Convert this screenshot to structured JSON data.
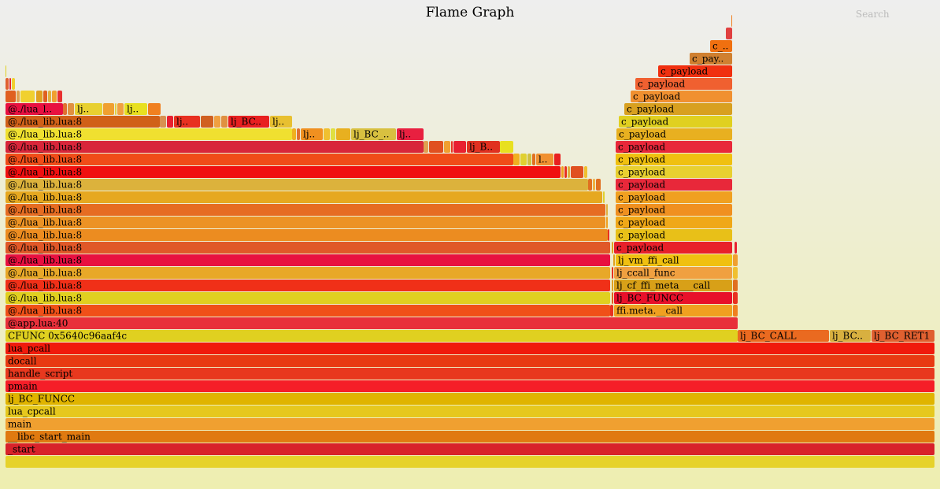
{
  "title": "Flame Graph",
  "search_label": "Search",
  "chart_data": {
    "type": "flame",
    "title": "Flame Graph",
    "row_count": 35,
    "frames": [
      {
        "d": 0,
        "x": 0,
        "w": 1180,
        "label": "",
        "color": "#e6d22a"
      },
      {
        "d": 1,
        "x": 0,
        "w": 1180,
        "label": "_start",
        "color": "#d8222a"
      },
      {
        "d": 2,
        "x": 0,
        "w": 1180,
        "label": "__libc_start_main",
        "color": "#e07a10"
      },
      {
        "d": 3,
        "x": 0,
        "w": 1180,
        "label": "main",
        "color": "#f0a030"
      },
      {
        "d": 4,
        "x": 0,
        "w": 1180,
        "label": "lua_cpcall",
        "color": "#e6c81e"
      },
      {
        "d": 5,
        "x": 0,
        "w": 1180,
        "label": "lj_BC_FUNCC",
        "color": "#e0b400"
      },
      {
        "d": 6,
        "x": 0,
        "w": 1180,
        "label": "pmain",
        "color": "#f51e28"
      },
      {
        "d": 7,
        "x": 0,
        "w": 1180,
        "label": "handle_script",
        "color": "#e8381e"
      },
      {
        "d": 8,
        "x": 0,
        "w": 1180,
        "label": "docall",
        "color": "#e83a12"
      },
      {
        "d": 9,
        "x": 0,
        "w": 1180,
        "label": "lua_pcall",
        "color": "#f01a0c"
      },
      {
        "d": 10,
        "x": 0,
        "w": 930,
        "label": "CFUNC 0x5640c96aaf4c",
        "color": "#e0d020"
      },
      {
        "d": 10,
        "x": 930,
        "w": 116,
        "label": "lj_BC_CALL",
        "color": "#ea6a20"
      },
      {
        "d": 10,
        "x": 1047,
        "w": 52,
        "label": "lj_BC..",
        "color": "#d8b040"
      },
      {
        "d": 10,
        "x": 1100,
        "w": 80,
        "label": "lj_BC_RET1",
        "color": "#e06030"
      },
      {
        "d": 11,
        "x": 0,
        "w": 930,
        "label": "@app.lua:40",
        "color": "#e8303a"
      },
      {
        "d": 12,
        "x": 0,
        "w": 768,
        "label": "@./lua_lib.lua:8",
        "color": "#f05018"
      },
      {
        "d": 12,
        "x": 768,
        "w": 4,
        "label": "",
        "color": "#e83020"
      },
      {
        "d": 12,
        "x": 773,
        "w": 150,
        "label": "ffi.meta.__call",
        "color": "#f0a020"
      },
      {
        "d": 12,
        "x": 924,
        "w": 6,
        "label": "",
        "color": "#f08020"
      },
      {
        "d": 13,
        "x": 0,
        "w": 768,
        "label": "@./lua_lib.lua:8",
        "color": "#e0d020"
      },
      {
        "d": 13,
        "x": 770,
        "w": 2,
        "label": "",
        "color": "#e06020"
      },
      {
        "d": 13,
        "x": 773,
        "w": 150,
        "label": "lj_BC_FUNCC",
        "color": "#e8102a"
      },
      {
        "d": 13,
        "x": 924,
        "w": 6,
        "label": "",
        "color": "#e83020"
      },
      {
        "d": 14,
        "x": 0,
        "w": 768,
        "label": "@./lua_lib.lua:8",
        "color": "#f03018"
      },
      {
        "d": 14,
        "x": 770,
        "w": 2,
        "label": "",
        "color": "#e0a020"
      },
      {
        "d": 14,
        "x": 773,
        "w": 150,
        "label": "lj_cf_ffi_meta___call",
        "color": "#d8a018"
      },
      {
        "d": 14,
        "x": 924,
        "w": 6,
        "label": "",
        "color": "#e07020"
      },
      {
        "d": 15,
        "x": 0,
        "w": 768,
        "label": "@./lua_lib.lua:8",
        "color": "#e8a828"
      },
      {
        "d": 15,
        "x": 770,
        "w": 2,
        "label": "",
        "color": "#e83020"
      },
      {
        "d": 15,
        "x": 773,
        "w": 150,
        "label": "lj_ccall_func",
        "color": "#f0a040"
      },
      {
        "d": 15,
        "x": 924,
        "w": 6,
        "label": "",
        "color": "#f0c030"
      },
      {
        "d": 16,
        "x": 0,
        "w": 768,
        "label": "@./lua_lib.lua:8",
        "color": "#e81040"
      },
      {
        "d": 16,
        "x": 772,
        "w": 2,
        "label": "",
        "color": "#e0a020"
      },
      {
        "d": 16,
        "x": 775,
        "w": 148,
        "label": "lj_vm_ffi_call",
        "color": "#f0c010"
      },
      {
        "d": 16,
        "x": 924,
        "w": 6,
        "label": "",
        "color": "#f0a030"
      },
      {
        "d": 17,
        "x": 0,
        "w": 768,
        "label": "@./lua_lib.lua:8",
        "color": "#e05828"
      },
      {
        "d": 17,
        "x": 770,
        "w": 2,
        "label": "",
        "color": "#e0a020"
      },
      {
        "d": 17,
        "x": 773,
        "w": 150,
        "label": "c_payload",
        "color": "#e8202a"
      },
      {
        "d": 17,
        "x": 926,
        "w": 3,
        "label": "",
        "color": "#e82030"
      },
      {
        "d": 18,
        "x": 0,
        "w": 765,
        "label": "@./lua_lib.lua:8",
        "color": "#ec8c20"
      },
      {
        "d": 18,
        "x": 765,
        "w": 2,
        "label": "",
        "color": "#e83020"
      },
      {
        "d": 18,
        "x": 775,
        "w": 148,
        "label": "c_payload",
        "color": "#e8c018"
      },
      {
        "d": 19,
        "x": 0,
        "w": 762,
        "label": "@./lua_lib.lua:8",
        "color": "#ec9224"
      },
      {
        "d": 19,
        "x": 763,
        "w": 2,
        "label": "",
        "color": "#f0a020"
      },
      {
        "d": 19,
        "x": 775,
        "w": 148,
        "label": "c_payload",
        "color": "#f0a818"
      },
      {
        "d": 20,
        "x": 0,
        "w": 762,
        "label": "@./lua_lib.lua:8",
        "color": "#e66c22"
      },
      {
        "d": 20,
        "x": 763,
        "w": 2,
        "label": "",
        "color": "#e0b040"
      },
      {
        "d": 20,
        "x": 775,
        "w": 148,
        "label": "c_payload",
        "color": "#f09020"
      },
      {
        "d": 21,
        "x": 0,
        "w": 758,
        "label": "@./lua_lib.lua:8",
        "color": "#e6a820"
      },
      {
        "d": 21,
        "x": 759,
        "w": 2,
        "label": "",
        "color": "#e0d030"
      },
      {
        "d": 21,
        "x": 775,
        "w": 148,
        "label": "c_payload",
        "color": "#f0a020"
      },
      {
        "d": 22,
        "x": 0,
        "w": 740,
        "label": "@./lua_lib.lua:8",
        "color": "#dcb23c"
      },
      {
        "d": 22,
        "x": 740,
        "w": 5,
        "label": "",
        "color": "#e07020"
      },
      {
        "d": 22,
        "x": 746,
        "w": 3,
        "label": "",
        "color": "#f0b040"
      },
      {
        "d": 22,
        "x": 750,
        "w": 6,
        "label": "",
        "color": "#e07020"
      },
      {
        "d": 22,
        "x": 775,
        "w": 148,
        "label": "c_payload",
        "color": "#e8283a"
      },
      {
        "d": 23,
        "x": 0,
        "w": 705,
        "label": "@./lua_lib.lua:8",
        "color": "#f01010"
      },
      {
        "d": 23,
        "x": 706,
        "w": 3,
        "label": "",
        "color": "#f0a020"
      },
      {
        "d": 23,
        "x": 710,
        "w": 3,
        "label": "",
        "color": "#e83020"
      },
      {
        "d": 23,
        "x": 714,
        "w": 3,
        "label": "",
        "color": "#e0b040"
      },
      {
        "d": 23,
        "x": 718,
        "w": 16,
        "label": "",
        "color": "#e05020"
      },
      {
        "d": 23,
        "x": 735,
        "w": 4,
        "label": "",
        "color": "#f0c030"
      },
      {
        "d": 23,
        "x": 775,
        "w": 148,
        "label": "c_payload",
        "color": "#e8d030"
      },
      {
        "d": 24,
        "x": 0,
        "w": 645,
        "label": "@./lua_lib.lua:8",
        "color": "#f04c18"
      },
      {
        "d": 24,
        "x": 645,
        "w": 8,
        "label": "",
        "color": "#f0b020"
      },
      {
        "d": 24,
        "x": 654,
        "w": 8,
        "label": "",
        "color": "#e0d030"
      },
      {
        "d": 24,
        "x": 663,
        "w": 5,
        "label": "",
        "color": "#d0c040"
      },
      {
        "d": 24,
        "x": 669,
        "w": 4,
        "label": "",
        "color": "#e07020"
      },
      {
        "d": 24,
        "x": 674,
        "w": 22,
        "label": "l..",
        "color": "#f09030"
      },
      {
        "d": 24,
        "x": 697,
        "w": 8,
        "label": "",
        "color": "#e82020"
      },
      {
        "d": 24,
        "x": 775,
        "w": 148,
        "label": "c_payload",
        "color": "#f0c010"
      },
      {
        "d": 25,
        "x": 0,
        "w": 531,
        "label": "@./lua_lib.lua:8",
        "color": "#d8263a"
      },
      {
        "d": 25,
        "x": 531,
        "w": 6,
        "label": "",
        "color": "#e0a050"
      },
      {
        "d": 25,
        "x": 538,
        "w": 18,
        "label": "",
        "color": "#e05020"
      },
      {
        "d": 25,
        "x": 557,
        "w": 8,
        "label": "",
        "color": "#f0a030"
      },
      {
        "d": 25,
        "x": 566,
        "w": 2,
        "label": "",
        "color": "#e83020"
      },
      {
        "d": 25,
        "x": 569,
        "w": 16,
        "label": "",
        "color": "#e82030"
      },
      {
        "d": 25,
        "x": 586,
        "w": 42,
        "label": "lj_B..",
        "color": "#e03020"
      },
      {
        "d": 25,
        "x": 628,
        "w": 17,
        "label": "",
        "color": "#e8e020"
      },
      {
        "d": 25,
        "x": 775,
        "w": 148,
        "label": "c_payload",
        "color": "#e8283a"
      },
      {
        "d": 26,
        "x": 0,
        "w": 364,
        "label": "@./lua_lib.lua:8",
        "color": "#f0e030"
      },
      {
        "d": 26,
        "x": 364,
        "w": 5,
        "label": "",
        "color": "#f0b020"
      },
      {
        "d": 26,
        "x": 370,
        "w": 4,
        "label": "",
        "color": "#e07030"
      },
      {
        "d": 26,
        "x": 375,
        "w": 28,
        "label": "lj..",
        "color": "#f09020"
      },
      {
        "d": 26,
        "x": 404,
        "w": 8,
        "label": "",
        "color": "#f0c030"
      },
      {
        "d": 26,
        "x": 413,
        "w": 6,
        "label": "",
        "color": "#e0e040"
      },
      {
        "d": 26,
        "x": 420,
        "w": 18,
        "label": "",
        "color": "#e8b020"
      },
      {
        "d": 26,
        "x": 439,
        "w": 57,
        "label": "lj_BC_..",
        "color": "#d8c040"
      },
      {
        "d": 26,
        "x": 497,
        "w": 34,
        "label": "lj..",
        "color": "#e82040"
      },
      {
        "d": 26,
        "x": 776,
        "w": 147,
        "label": "c_payload",
        "color": "#e8b020"
      },
      {
        "d": 27,
        "x": 0,
        "w": 196,
        "label": "@./lua_lib.lua:8",
        "color": "#d06018"
      },
      {
        "d": 27,
        "x": 196,
        "w": 8,
        "label": "",
        "color": "#d89050"
      },
      {
        "d": 27,
        "x": 205,
        "w": 8,
        "label": "",
        "color": "#e82030"
      },
      {
        "d": 27,
        "x": 214,
        "w": 33,
        "label": "lj..",
        "color": "#e83020"
      },
      {
        "d": 27,
        "x": 248,
        "w": 16,
        "label": "",
        "color": "#d06020"
      },
      {
        "d": 27,
        "x": 265,
        "w": 8,
        "label": "",
        "color": "#f0a040"
      },
      {
        "d": 27,
        "x": 274,
        "w": 8,
        "label": "",
        "color": "#e09040"
      },
      {
        "d": 27,
        "x": 283,
        "w": 52,
        "label": "lj_BC..",
        "color": "#e82020"
      },
      {
        "d": 27,
        "x": 336,
        "w": 28,
        "label": "lj..",
        "color": "#e8c030"
      },
      {
        "d": 27,
        "x": 779,
        "w": 144,
        "label": "c_payload",
        "color": "#e0d020"
      },
      {
        "d": 28,
        "x": 0,
        "w": 73,
        "label": "@./lua_l..",
        "color": "#e81040"
      },
      {
        "d": 28,
        "x": 73,
        "w": 5,
        "label": "",
        "color": "#e07030"
      },
      {
        "d": 28,
        "x": 79,
        "w": 8,
        "label": "",
        "color": "#e09040"
      },
      {
        "d": 28,
        "x": 88,
        "w": 35,
        "label": "lj..",
        "color": "#e8d030"
      },
      {
        "d": 28,
        "x": 124,
        "w": 14,
        "label": "",
        "color": "#f0a030"
      },
      {
        "d": 28,
        "x": 139,
        "w": 2,
        "label": "",
        "color": "#e0d040"
      },
      {
        "d": 28,
        "x": 142,
        "w": 8,
        "label": "",
        "color": "#f0a040"
      },
      {
        "d": 28,
        "x": 151,
        "w": 29,
        "label": "lj..",
        "color": "#e8e020"
      },
      {
        "d": 28,
        "x": 181,
        "w": 16,
        "label": "",
        "color": "#f08020"
      },
      {
        "d": 28,
        "x": 786,
        "w": 137,
        "label": "c_payload",
        "color": "#d8a020"
      },
      {
        "d": 29,
        "x": 0,
        "w": 13,
        "label": "",
        "color": "#e06020"
      },
      {
        "d": 29,
        "x": 14,
        "w": 4,
        "label": "",
        "color": "#e0a050"
      },
      {
        "d": 29,
        "x": 19,
        "w": 18,
        "label": "",
        "color": "#f0d030"
      },
      {
        "d": 29,
        "x": 39,
        "w": 8,
        "label": "",
        "color": "#e0a020"
      },
      {
        "d": 29,
        "x": 48,
        "w": 5,
        "label": "",
        "color": "#e06020"
      },
      {
        "d": 29,
        "x": 54,
        "w": 4,
        "label": "",
        "color": "#e0b040"
      },
      {
        "d": 29,
        "x": 59,
        "w": 6,
        "label": "",
        "color": "#f0a030"
      },
      {
        "d": 29,
        "x": 66,
        "w": 6,
        "label": "",
        "color": "#e83030"
      },
      {
        "d": 29,
        "x": 794,
        "w": 129,
        "label": "c_payload",
        "color": "#f09030"
      },
      {
        "d": 30,
        "x": 0,
        "w": 4,
        "label": "",
        "color": "#e06030"
      },
      {
        "d": 30,
        "x": 5,
        "w": 2,
        "label": "",
        "color": "#e82030"
      },
      {
        "d": 30,
        "x": 8,
        "w": 4,
        "label": "",
        "color": "#f0d030"
      },
      {
        "d": 30,
        "x": 800,
        "w": 123,
        "label": "c_payload",
        "color": "#f06030"
      },
      {
        "d": 31,
        "x": 0,
        "w": 1,
        "label": "",
        "color": "#e0d020"
      },
      {
        "d": 31,
        "x": 829,
        "w": 94,
        "label": "c_payload",
        "color": "#f03010"
      },
      {
        "d": 32,
        "x": 869,
        "w": 54,
        "label": "c_pay..",
        "color": "#d08030"
      },
      {
        "d": 33,
        "x": 895,
        "w": 28,
        "label": "c_..",
        "color": "#f07010"
      },
      {
        "d": 34,
        "x": 915,
        "w": 8,
        "label": "",
        "color": "#e04040"
      },
      {
        "d": 35,
        "x": 922,
        "w": 1,
        "label": "",
        "color": "#f08020"
      }
    ]
  }
}
